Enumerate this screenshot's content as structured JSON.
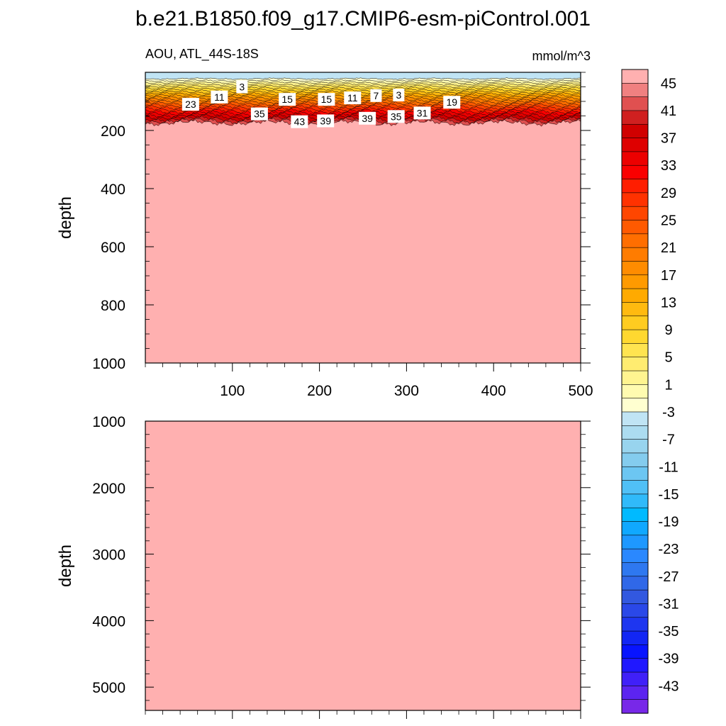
{
  "title": "b.e21.B1850.f09_g17.CMIP6-esm-piControl.001",
  "subtitle_left": "AOU, ATL_44S-18S",
  "units": "mmol/m^3",
  "chart_data": [
    {
      "type": "heatmap",
      "panel": "upper",
      "ylabel": "depth",
      "xlim": [
        0,
        500
      ],
      "ylim": [
        1000,
        0
      ],
      "x_ticks": [
        100,
        200,
        300,
        400,
        500
      ],
      "y_ticks": [
        200,
        400,
        600,
        800,
        1000
      ],
      "grid": false,
      "contour_labels": [
        {
          "value": "3",
          "x": 111,
          "depth": 50
        },
        {
          "value": "11",
          "x": 85,
          "depth": 85
        },
        {
          "value": "23",
          "x": 52,
          "depth": 110
        },
        {
          "value": "15",
          "x": 163,
          "depth": 93
        },
        {
          "value": "35",
          "x": 131,
          "depth": 143
        },
        {
          "value": "15",
          "x": 208,
          "depth": 93
        },
        {
          "value": "43",
          "x": 177,
          "depth": 170
        },
        {
          "value": "39",
          "x": 207,
          "depth": 167
        },
        {
          "value": "11",
          "x": 238,
          "depth": 88
        },
        {
          "value": "7",
          "x": 265,
          "depth": 80
        },
        {
          "value": "3",
          "x": 291,
          "depth": 78
        },
        {
          "value": "39",
          "x": 255,
          "depth": 158
        },
        {
          "value": "35",
          "x": 288,
          "depth": 152
        },
        {
          "value": "31",
          "x": 318,
          "depth": 140
        },
        {
          "value": "19",
          "x": 352,
          "depth": 103
        }
      ],
      "field_description": "negative AOU (-3 to -1) in surface layer to ~20 m, rising through contour levels to >45 below ~180 m"
    },
    {
      "type": "heatmap",
      "panel": "lower",
      "ylabel": "depth",
      "xlim": [
        0,
        500
      ],
      "ylim": [
        5350,
        1000
      ],
      "y_ticks": [
        1000,
        2000,
        3000,
        4000,
        5000
      ],
      "grid": false,
      "field_value": "above 45"
    }
  ],
  "colorbar": {
    "labels": [
      "45",
      "41",
      "37",
      "33",
      "29",
      "25",
      "21",
      "17",
      "13",
      "9",
      "5",
      "1",
      "-3",
      "-7",
      "-11",
      "-15",
      "-19",
      "-23",
      "-27",
      "-31",
      "-35",
      "-39",
      "-43"
    ],
    "colors": [
      "#FFB0B0",
      "#F08080",
      "#E05050",
      "#D02020",
      "#D00000",
      "#DE0000",
      "#EC0000",
      "#FA0000",
      "#FF1E00",
      "#FF3200",
      "#FF4600",
      "#FF5A00",
      "#FF6E00",
      "#FF7C00",
      "#FF8C00",
      "#FF9A00",
      "#FFAA00",
      "#FFBA10",
      "#FFCC20",
      "#FFD830",
      "#FFE450",
      "#FFEC70",
      "#FFF490",
      "#FFFBB0",
      "#FFFFD0",
      "#C0E4F4",
      "#ACDCF0",
      "#98D4EE",
      "#84CCEE",
      "#6CC6F2",
      "#50C0F6",
      "#30BAFA",
      "#00BAFF",
      "#10A8FF",
      "#1E98FF",
      "#2A88FF",
      "#2E78F0",
      "#3068E8",
      "#3258E0",
      "#2A48E8",
      "#1E36F0",
      "#1226F4",
      "#0814FF",
      "#2018FF",
      "#4020F8",
      "#5C24F0",
      "#7828E8"
    ]
  }
}
